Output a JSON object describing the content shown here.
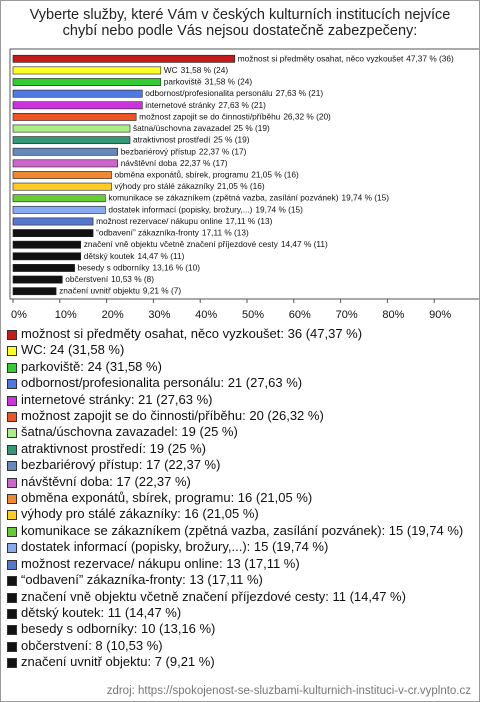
{
  "chart_data": {
    "type": "barh",
    "title": "Vyberte služby, které Vám v českých kulturních institucích nejvíce chybí nebo podle Vás nejsou dostatečně zabezpečeny:",
    "categories": [
      "možnost si předměty osahat, něco vyzkoušet",
      "WC",
      "parkoviště",
      "odbornost/profesionalita personálu",
      "internetové stránky",
      "možnost zapojit se do činnosti/příběhu",
      "šatna/úschovna zavazadel",
      "atraktivnost prostředí",
      "bezbariérový přístup",
      "návštěvní doba",
      "obměna exponátů, sbírek, programu",
      "výhody pro stálé zákazníky",
      "komunikace se zákazníkem (zpětná vazba, zasílání pozvánek)",
      "dostatek informací (popisky, brožury,...)",
      "možnost rezervace/ nákupu online",
      "“odbavení” zákazníka-fronty",
      "značení vně objektu včetně značení příjezdové cesty",
      "dětský koutek",
      "besedy s odborníky",
      "občerstvení",
      "značení uvnitř objektu"
    ],
    "values": [
      47.37,
      31.58,
      31.58,
      27.63,
      27.63,
      26.32,
      25,
      25,
      22.37,
      22.37,
      21.05,
      21.05,
      19.74,
      19.74,
      17.11,
      17.11,
      14.47,
      14.47,
      13.16,
      10.53,
      9.21
    ],
    "value_labels": [
      "47,37 % (36)",
      "31,58 % (24)",
      "31,58 % (24)",
      "27,63 % (21)",
      "27,63 % (21)",
      "26,32 % (20)",
      "25 % (19)",
      "25 % (19)",
      "22,37 % (17)",
      "22,37 % (17)",
      "21,05 % (16)",
      "21,05 % (16)",
      "19,74 % (15)",
      "19,74 % (15)",
      "17,11 % (13)",
      "17,11 % (13)",
      "14,47 % (11)",
      "14,47 % (11)",
      "13,16 % (10)",
      "10,53 % (8)",
      "9,21 % (7)"
    ],
    "colors": [
      "#c41a1a",
      "#ffff22",
      "#33cc33",
      "#4f78e0",
      "#cc33dd",
      "#ee5522",
      "#aaee88",
      "#339977",
      "#6688bb",
      "#cc66cc",
      "#ee8833",
      "#ffcc22",
      "#66cc33",
      "#88aaee",
      "#5577cc",
      "#111111",
      "#111111",
      "#111111",
      "#111111",
      "#111111",
      "#111111"
    ],
    "legend": [
      "možnost si předměty osahat, něco vyzkoušet: 36 (47,37 %)",
      "WC: 24 (31,58 %)",
      "parkoviště: 24 (31,58 %)",
      "odbornost/profesionalita personálu: 21 (27,63 %)",
      "internetové stránky: 21 (27,63 %)",
      "možnost zapojit se do činnosti/příběhu: 20 (26,32 %)",
      "šatna/úschovna zavazadel: 19 (25 %)",
      "atraktivnost prostředí: 19 (25 %)",
      "bezbariérový přístup: 17 (22,37 %)",
      "návštěvní doba: 17 (22,37 %)",
      "obměna exponátů, sbírek, programu: 16 (21,05 %)",
      "výhody pro stálé zákazníky: 16 (21,05 %)",
      "komunikace se zákazníkem (zpětná vazba, zasílání pozvánek): 15 (19,74 %)",
      "dostatek informací (popisky, brožury,...): 15 (19,74 %)",
      "možnost rezervace/ nákupu online: 13 (17,11 %)",
      "“odbavení” zákazníka-fronty: 13 (17,11 %)",
      "značení vně objektu včetně značení příjezdové cesty: 11 (14,47 %)",
      "dětský koutek: 11 (14,47 %)",
      "besedy s odborníky: 10 (13,16 %)",
      "občerstvení: 8 (10,53 %)",
      "značení uvnitř objektu: 7 (9,21 %)"
    ],
    "xlim": [
      0,
      100
    ],
    "xticks": [
      {
        "value": 0,
        "label": "0%"
      },
      {
        "value": 10,
        "label": "10%"
      },
      {
        "value": 20,
        "label": "20%"
      },
      {
        "value": 30,
        "label": "30%"
      },
      {
        "value": 40,
        "label": "40%"
      },
      {
        "value": 50,
        "label": "50%"
      },
      {
        "value": 60,
        "label": "60%"
      },
      {
        "value": 70,
        "label": "70%"
      },
      {
        "value": 80,
        "label": "80%"
      },
      {
        "value": 90,
        "label": "90%"
      }
    ],
    "source": "zdroj: https://spokojenost-se-sluzbami-kulturnich-instituci-v-cr.vyplnto.cz"
  }
}
